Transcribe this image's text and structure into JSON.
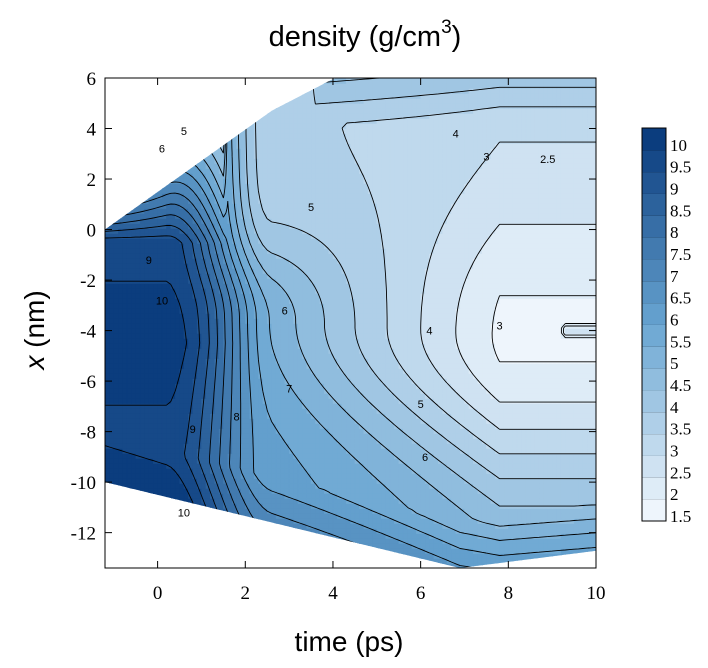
{
  "chart_data": {
    "type": "contour",
    "title": "density (g/cm",
    "title_superscript": "3",
    "title_close": ")",
    "xlabel": "time (ps)",
    "ylabel": "x (nm)",
    "ylabel_italic": "x",
    "ylabel_rest": " (nm)",
    "xlim": [
      -1.2,
      10
    ],
    "ylim": [
      -13.4,
      6
    ],
    "x_ticks": [
      0,
      2,
      4,
      6,
      8,
      10
    ],
    "x_tick_labels": [
      "0",
      "2",
      "4",
      "6",
      "8",
      "10"
    ],
    "y_ticks": [
      6,
      4,
      2,
      0,
      -2,
      -4,
      -6,
      -8,
      -10,
      -12
    ],
    "y_tick_labels": [
      "6",
      "4",
      "2",
      "0",
      "-2",
      "-4",
      "-6",
      "-8",
      "-10",
      "-12"
    ],
    "colorbar": {
      "levels": [
        1.5,
        2,
        2.5,
        3,
        3.5,
        4,
        4.5,
        5,
        5.5,
        6,
        6.5,
        7,
        7.5,
        8,
        8.5,
        9,
        9.5,
        10
      ],
      "labels": [
        "1.5",
        "2",
        "2.5",
        "3",
        "3.5",
        "4",
        "4.5",
        "5",
        "5.5",
        "6",
        "6.5",
        "7",
        "7.5",
        "8",
        "8.5",
        "9",
        "9.5",
        "10"
      ],
      "color_min": "#eef5fc",
      "color_max": "#0b3d7e",
      "position": "right"
    },
    "contour_labels": [
      {
        "text": "4",
        "x": 6.8,
        "y": 3.8
      },
      {
        "text": "3",
        "x": 7.5,
        "y": 2.9
      },
      {
        "text": "2.5",
        "x": 8.9,
        "y": 2.8
      },
      {
        "text": "5",
        "x": 3.5,
        "y": 0.9
      },
      {
        "text": "6",
        "x": 2.9,
        "y": -3.2
      },
      {
        "text": "4",
        "x": 6.2,
        "y": -4.0
      },
      {
        "text": "3",
        "x": 7.8,
        "y": -3.8
      },
      {
        "text": "7",
        "x": 3.0,
        "y": -6.3
      },
      {
        "text": "5",
        "x": 6.0,
        "y": -6.9
      },
      {
        "text": "8",
        "x": 1.8,
        "y": -7.4
      },
      {
        "text": "9",
        "x": 0.8,
        "y": -7.9
      },
      {
        "text": "6",
        "x": 6.1,
        "y": -9.0
      },
      {
        "text": "10",
        "x": 0.1,
        "y": -2.8
      },
      {
        "text": "9",
        "x": -0.2,
        "y": -1.2
      },
      {
        "text": "10",
        "x": 0.6,
        "y": -11.2
      },
      {
        "text": "6",
        "x": 0.1,
        "y": 3.2
      },
      {
        "text": "5",
        "x": 0.6,
        "y": 3.9
      }
    ]
  }
}
